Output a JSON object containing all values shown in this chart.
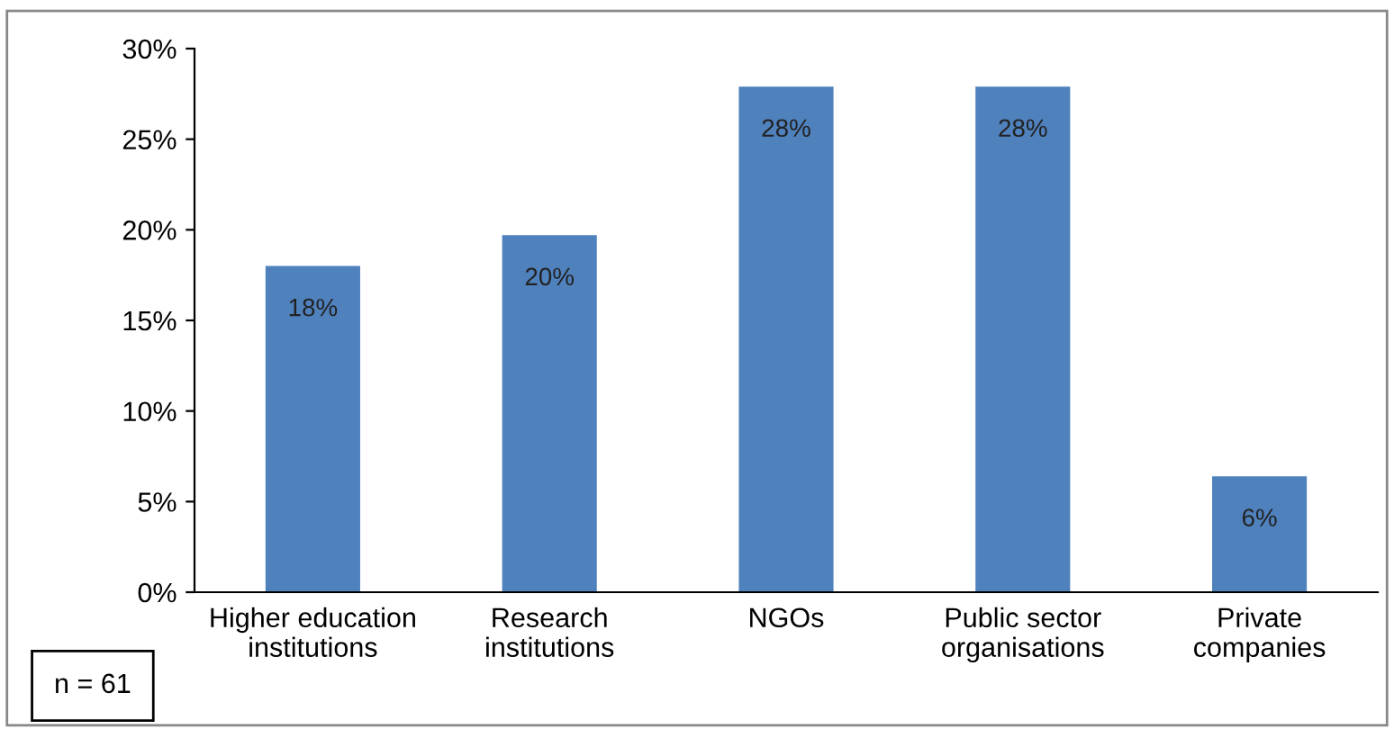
{
  "chart_data": {
    "type": "bar",
    "categories": [
      "Higher education\ninstitutions",
      "Research\ninstitutions",
      "NGOs",
      "Public sector\norganisations",
      "Private\ncompanies"
    ],
    "values": [
      18.0,
      19.7,
      27.9,
      27.9,
      6.4
    ],
    "value_labels": [
      "18%",
      "20%",
      "28%",
      "28%",
      "6%"
    ],
    "color": "#4f81bd",
    "ylim": [
      0,
      30
    ],
    "yticks": [
      {
        "value": 0,
        "label": "0%"
      },
      {
        "value": 5,
        "label": "5%"
      },
      {
        "value": 10,
        "label": "10%"
      },
      {
        "value": 15,
        "label": "15%"
      },
      {
        "value": 20,
        "label": "20%"
      },
      {
        "value": 25,
        "label": "25%"
      },
      {
        "value": 30,
        "label": "30%"
      }
    ],
    "grid": false,
    "legend": false,
    "annotations": [
      "n = 61"
    ]
  }
}
